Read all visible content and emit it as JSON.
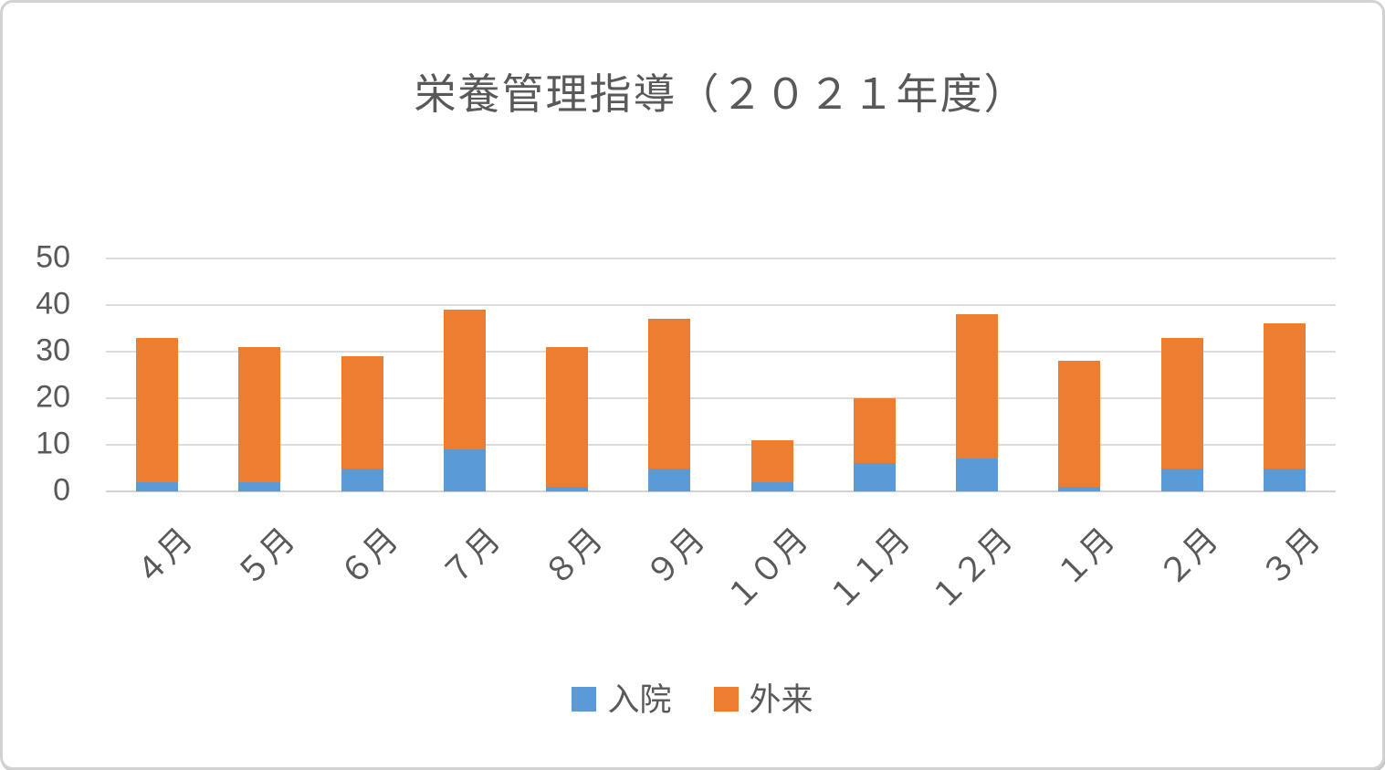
{
  "chart": {
    "title": "栄養管理指導（２０２１年度）"
  },
  "colors": {
    "series_inpatient": "#5B9BD5",
    "series_outpatient": "#ED7D31",
    "gridline": "#DCDCDC",
    "axis_line": "#D2D2D2",
    "text": "#595959",
    "card_border": "#D2D2D2",
    "background": "#FFFFFF"
  },
  "chart_data": {
    "type": "bar",
    "stacked": true,
    "title": "栄養管理指導（２０２１年度）",
    "categories": [
      "４月",
      "５月",
      "６月",
      "７月",
      "８月",
      "９月",
      "１０月",
      "１１月",
      "１２月",
      "１月",
      "２月",
      "３月"
    ],
    "series": [
      {
        "name": "入院",
        "color": "#5B9BD5",
        "values": [
          2,
          2,
          5,
          9,
          1,
          5,
          2,
          6,
          7,
          1,
          5,
          5
        ]
      },
      {
        "name": "外来",
        "color": "#ED7D31",
        "values": [
          31,
          29,
          24,
          30,
          30,
          32,
          9,
          14,
          31,
          27,
          28,
          31
        ]
      }
    ],
    "totals": [
      33,
      31,
      29,
      39,
      31,
      37,
      11,
      20,
      38,
      28,
      33,
      36
    ],
    "xlabel": "",
    "ylabel": "",
    "ylim": [
      0,
      50
    ],
    "yticks": [
      0,
      10,
      20,
      30,
      40,
      50
    ],
    "grid": true,
    "legend_position": "bottom",
    "x_label_rotation": -45
  }
}
